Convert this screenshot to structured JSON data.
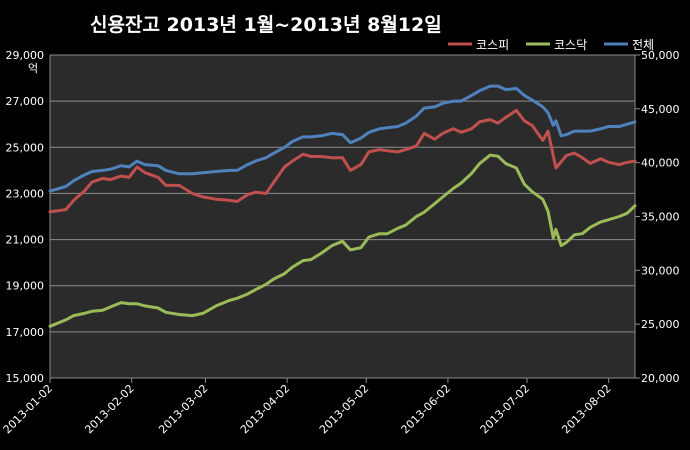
{
  "chart_data": {
    "type": "line",
    "title": "신용잔고 2013년 1월~2013년 8월12일",
    "ylabel_left": "억",
    "left_axis": {
      "ylim": [
        15000,
        29000
      ],
      "ticks": [
        "15,000",
        "17,000",
        "19,000",
        "21,000",
        "23,000",
        "25,000",
        "27,000",
        "29,000"
      ]
    },
    "right_axis": {
      "ylim": [
        20000,
        50000
      ],
      "ticks": [
        "20,000",
        "25,000",
        "30,000",
        "35,000",
        "40,000",
        "45,000",
        "50,000"
      ]
    },
    "x_ticks": [
      {
        "label": "2013-01-02",
        "date": "2013-01-02"
      },
      {
        "label": "2013-02-02",
        "date": "2013-02-02"
      },
      {
        "label": "2013-03-02",
        "date": "2013-03-02"
      },
      {
        "label": "2013-04-02",
        "date": "2013-04-02"
      },
      {
        "label": "2013-05-02",
        "date": "2013-05-02"
      },
      {
        "label": "2013-06-02",
        "date": "2013-06-02"
      },
      {
        "label": "2013-07-02",
        "date": "2013-07-02"
      },
      {
        "label": "2013-08-02",
        "date": "2013-08-02"
      }
    ],
    "xlim": [
      "2013-01-02",
      "2013-08-12"
    ],
    "grid": true,
    "legend_position": "top-right",
    "series": [
      {
        "name": "코스피",
        "axis": "left",
        "color": "#c0504d",
        "points": [
          [
            "2013-01-02",
            22200
          ],
          [
            "2013-01-08",
            22300
          ],
          [
            "2013-01-11",
            22700
          ],
          [
            "2013-01-15",
            23100
          ],
          [
            "2013-01-18",
            23500
          ],
          [
            "2013-01-22",
            23650
          ],
          [
            "2013-01-25",
            23600
          ],
          [
            "2013-01-29",
            23750
          ],
          [
            "2013-02-01",
            23700
          ],
          [
            "2013-02-04",
            24150
          ],
          [
            "2013-02-07",
            23900
          ],
          [
            "2013-02-12",
            23700
          ],
          [
            "2013-02-15",
            23350
          ],
          [
            "2013-02-20",
            23350
          ],
          [
            "2013-02-25",
            23000
          ],
          [
            "2013-03-01",
            22850
          ],
          [
            "2013-03-06",
            22750
          ],
          [
            "2013-03-11",
            22700
          ],
          [
            "2013-03-14",
            22650
          ],
          [
            "2013-03-18",
            22950
          ],
          [
            "2013-03-21",
            23050
          ],
          [
            "2013-03-25",
            23000
          ],
          [
            "2013-03-28",
            23500
          ],
          [
            "2013-04-01",
            24150
          ],
          [
            "2013-04-04",
            24400
          ],
          [
            "2013-04-08",
            24700
          ],
          [
            "2013-04-11",
            24600
          ],
          [
            "2013-04-15",
            24600
          ],
          [
            "2013-04-19",
            24550
          ],
          [
            "2013-04-23",
            24550
          ],
          [
            "2013-04-26",
            24000
          ],
          [
            "2013-04-30",
            24250
          ],
          [
            "2013-05-03",
            24800
          ],
          [
            "2013-05-07",
            24900
          ],
          [
            "2013-05-10",
            24850
          ],
          [
            "2013-05-14",
            24800
          ],
          [
            "2013-05-17",
            24900
          ],
          [
            "2013-05-21",
            25050
          ],
          [
            "2013-05-24",
            25600
          ],
          [
            "2013-05-28",
            25350
          ],
          [
            "2013-05-31",
            25600
          ],
          [
            "2013-06-04",
            25800
          ],
          [
            "2013-06-07",
            25650
          ],
          [
            "2013-06-11",
            25800
          ],
          [
            "2013-06-14",
            26100
          ],
          [
            "2013-06-18",
            26200
          ],
          [
            "2013-06-21",
            26050
          ],
          [
            "2013-06-24",
            26300
          ],
          [
            "2013-06-28",
            26600
          ],
          [
            "2013-07-01",
            26150
          ],
          [
            "2013-07-04",
            25950
          ],
          [
            "2013-07-08",
            25300
          ],
          [
            "2013-07-10",
            25700
          ],
          [
            "2013-07-13",
            24100
          ],
          [
            "2013-07-17",
            24650
          ],
          [
            "2013-07-20",
            24750
          ],
          [
            "2013-07-23",
            24550
          ],
          [
            "2013-07-26",
            24300
          ],
          [
            "2013-07-30",
            24500
          ],
          [
            "2013-08-02",
            24350
          ],
          [
            "2013-08-06",
            24250
          ],
          [
            "2013-08-09",
            24350
          ],
          [
            "2013-08-12",
            24400
          ]
        ]
      },
      {
        "name": "코스닥",
        "axis": "right",
        "color": "#9bbb59",
        "points": [
          [
            "2013-01-02",
            24800
          ],
          [
            "2013-01-08",
            25400
          ],
          [
            "2013-01-11",
            25800
          ],
          [
            "2013-01-15",
            26000
          ],
          [
            "2013-01-18",
            26200
          ],
          [
            "2013-01-22",
            26300
          ],
          [
            "2013-01-25",
            26600
          ],
          [
            "2013-01-29",
            27000
          ],
          [
            "2013-02-01",
            26900
          ],
          [
            "2013-02-04",
            26900
          ],
          [
            "2013-02-07",
            26700
          ],
          [
            "2013-02-12",
            26500
          ],
          [
            "2013-02-15",
            26100
          ],
          [
            "2013-02-20",
            25900
          ],
          [
            "2013-02-25",
            25800
          ],
          [
            "2013-03-01",
            26000
          ],
          [
            "2013-03-06",
            26700
          ],
          [
            "2013-03-11",
            27200
          ],
          [
            "2013-03-14",
            27400
          ],
          [
            "2013-03-18",
            27800
          ],
          [
            "2013-03-21",
            28200
          ],
          [
            "2013-03-25",
            28700
          ],
          [
            "2013-03-28",
            29200
          ],
          [
            "2013-04-01",
            29700
          ],
          [
            "2013-04-04",
            30300
          ],
          [
            "2013-04-08",
            30900
          ],
          [
            "2013-04-11",
            31000
          ],
          [
            "2013-04-15",
            31600
          ],
          [
            "2013-04-19",
            32300
          ],
          [
            "2013-04-23",
            32700
          ],
          [
            "2013-04-26",
            31900
          ],
          [
            "2013-04-30",
            32100
          ],
          [
            "2013-05-03",
            33100
          ],
          [
            "2013-05-07",
            33400
          ],
          [
            "2013-05-10",
            33400
          ],
          [
            "2013-05-14",
            33900
          ],
          [
            "2013-05-17",
            34200
          ],
          [
            "2013-05-21",
            35000
          ],
          [
            "2013-05-24",
            35400
          ],
          [
            "2013-05-28",
            36200
          ],
          [
            "2013-05-31",
            36800
          ],
          [
            "2013-06-04",
            37600
          ],
          [
            "2013-06-07",
            38100
          ],
          [
            "2013-06-11",
            39000
          ],
          [
            "2013-06-14",
            39900
          ],
          [
            "2013-06-18",
            40700
          ],
          [
            "2013-06-21",
            40600
          ],
          [
            "2013-06-24",
            39900
          ],
          [
            "2013-06-28",
            39500
          ],
          [
            "2013-07-01",
            38000
          ],
          [
            "2013-07-04",
            37300
          ],
          [
            "2013-07-08",
            36600
          ],
          [
            "2013-07-10",
            35500
          ],
          [
            "2013-07-12",
            33000
          ],
          [
            "2013-07-13",
            33800
          ],
          [
            "2013-07-15",
            32300
          ],
          [
            "2013-07-17",
            32600
          ],
          [
            "2013-07-20",
            33300
          ],
          [
            "2013-07-23",
            33400
          ],
          [
            "2013-07-26",
            34000
          ],
          [
            "2013-07-30",
            34500
          ],
          [
            "2013-08-02",
            34700
          ],
          [
            "2013-08-06",
            35000
          ],
          [
            "2013-08-09",
            35300
          ],
          [
            "2013-08-12",
            36000
          ]
        ]
      },
      {
        "name": "전체",
        "axis": "left",
        "color": "#4f81bd",
        "points": [
          [
            "2013-01-02",
            23100
          ],
          [
            "2013-01-08",
            23300
          ],
          [
            "2013-01-11",
            23550
          ],
          [
            "2013-01-15",
            23800
          ],
          [
            "2013-01-18",
            23950
          ],
          [
            "2013-01-22",
            24000
          ],
          [
            "2013-01-25",
            24050
          ],
          [
            "2013-01-29",
            24200
          ],
          [
            "2013-02-01",
            24150
          ],
          [
            "2013-02-04",
            24400
          ],
          [
            "2013-02-07",
            24250
          ],
          [
            "2013-02-12",
            24200
          ],
          [
            "2013-02-15",
            24000
          ],
          [
            "2013-02-20",
            23850
          ],
          [
            "2013-02-25",
            23850
          ],
          [
            "2013-03-01",
            23900
          ],
          [
            "2013-03-06",
            23950
          ],
          [
            "2013-03-11",
            24000
          ],
          [
            "2013-03-14",
            24000
          ],
          [
            "2013-03-18",
            24250
          ],
          [
            "2013-03-21",
            24400
          ],
          [
            "2013-03-25",
            24550
          ],
          [
            "2013-03-28",
            24750
          ],
          [
            "2013-04-01",
            25000
          ],
          [
            "2013-04-04",
            25250
          ],
          [
            "2013-04-08",
            25450
          ],
          [
            "2013-04-11",
            25450
          ],
          [
            "2013-04-15",
            25500
          ],
          [
            "2013-04-19",
            25600
          ],
          [
            "2013-04-23",
            25550
          ],
          [
            "2013-04-26",
            25200
          ],
          [
            "2013-04-30",
            25400
          ],
          [
            "2013-05-03",
            25650
          ],
          [
            "2013-05-07",
            25800
          ],
          [
            "2013-05-10",
            25850
          ],
          [
            "2013-05-14",
            25900
          ],
          [
            "2013-05-17",
            26050
          ],
          [
            "2013-05-21",
            26350
          ],
          [
            "2013-05-24",
            26700
          ],
          [
            "2013-05-28",
            26750
          ],
          [
            "2013-05-31",
            26900
          ],
          [
            "2013-06-04",
            27000
          ],
          [
            "2013-06-07",
            27000
          ],
          [
            "2013-06-11",
            27250
          ],
          [
            "2013-06-14",
            27450
          ],
          [
            "2013-06-18",
            27650
          ],
          [
            "2013-06-21",
            27650
          ],
          [
            "2013-06-24",
            27500
          ],
          [
            "2013-06-28",
            27550
          ],
          [
            "2013-07-01",
            27250
          ],
          [
            "2013-07-04",
            27050
          ],
          [
            "2013-07-08",
            26750
          ],
          [
            "2013-07-10",
            26500
          ],
          [
            "2013-07-12",
            25950
          ],
          [
            "2013-07-13",
            26150
          ],
          [
            "2013-07-15",
            25500
          ],
          [
            "2013-07-17",
            25550
          ],
          [
            "2013-07-20",
            25700
          ],
          [
            "2013-07-23",
            25700
          ],
          [
            "2013-07-26",
            25700
          ],
          [
            "2013-07-30",
            25800
          ],
          [
            "2013-08-02",
            25900
          ],
          [
            "2013-08-06",
            25900
          ],
          [
            "2013-08-09",
            26000
          ],
          [
            "2013-08-12",
            26100
          ]
        ]
      }
    ]
  }
}
